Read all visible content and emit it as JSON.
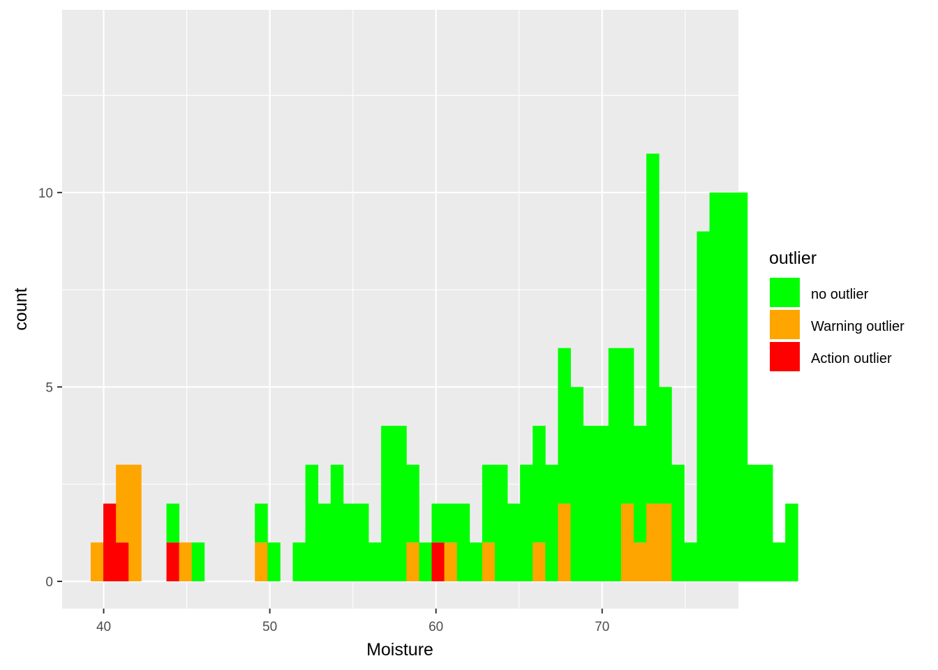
{
  "chart_data": {
    "type": "bar",
    "subtype": "stacked-histogram",
    "xlabel": "Moisture",
    "ylabel": "count",
    "xlim": [
      37.5,
      78.2
    ],
    "ylim": [
      -0.7,
      14.7
    ],
    "x_ticks": [
      40,
      50,
      60,
      70
    ],
    "x_tick_labels": [
      "40",
      "50",
      "60",
      "70"
    ],
    "y_ticks": [
      0,
      5,
      10
    ],
    "y_tick_labels": [
      "0",
      "5",
      "10"
    ],
    "grid": true,
    "bin_width": 0.76,
    "first_bin_center": 39.6,
    "legend": {
      "title": "outlier",
      "position": "right",
      "entries": [
        {
          "label": "no outlier",
          "color": "#00FF00"
        },
        {
          "label": "Warning outlier",
          "color": "#FFA500"
        },
        {
          "label": "Action outlier",
          "color": "#FF0000"
        }
      ]
    },
    "series": [
      {
        "name": "no outlier",
        "color": "#00FF00",
        "values": [
          0,
          0,
          0,
          0,
          0,
          0,
          1,
          0,
          1,
          0,
          0,
          0,
          0,
          1,
          1,
          0,
          1,
          3,
          2,
          3,
          2,
          2,
          1,
          4,
          4,
          2,
          1,
          1,
          1,
          2,
          1,
          2,
          3,
          2,
          3,
          3,
          3,
          4,
          5,
          4,
          4,
          6,
          4,
          3,
          9,
          3,
          3,
          1,
          9,
          10,
          10,
          10,
          3,
          3,
          1,
          2
        ]
      },
      {
        "name": "Warning outlier",
        "color": "#FFA500",
        "values": [
          1,
          0,
          2,
          3,
          0,
          0,
          0,
          1,
          0,
          0,
          0,
          0,
          0,
          1,
          0,
          0,
          0,
          0,
          0,
          0,
          0,
          0,
          0,
          0,
          0,
          1,
          0,
          0,
          1,
          0,
          0,
          1,
          0,
          0,
          0,
          1,
          0,
          2,
          0,
          0,
          0,
          0,
          2,
          1,
          2,
          2,
          0,
          0,
          0,
          0,
          0,
          0,
          0,
          0,
          0,
          0
        ]
      },
      {
        "name": "Action outlier",
        "color": "#FF0000",
        "values": [
          0,
          2,
          1,
          0,
          0,
          0,
          1,
          0,
          0,
          0,
          0,
          0,
          0,
          0,
          0,
          0,
          0,
          0,
          0,
          0,
          0,
          0,
          0,
          0,
          0,
          0,
          0,
          1,
          0,
          0,
          0,
          0,
          0,
          0,
          0,
          0,
          0,
          0,
          0,
          0,
          0,
          0,
          0,
          0,
          0,
          0,
          0,
          0,
          0,
          0,
          0,
          0,
          0,
          0,
          0,
          0
        ]
      }
    ]
  }
}
